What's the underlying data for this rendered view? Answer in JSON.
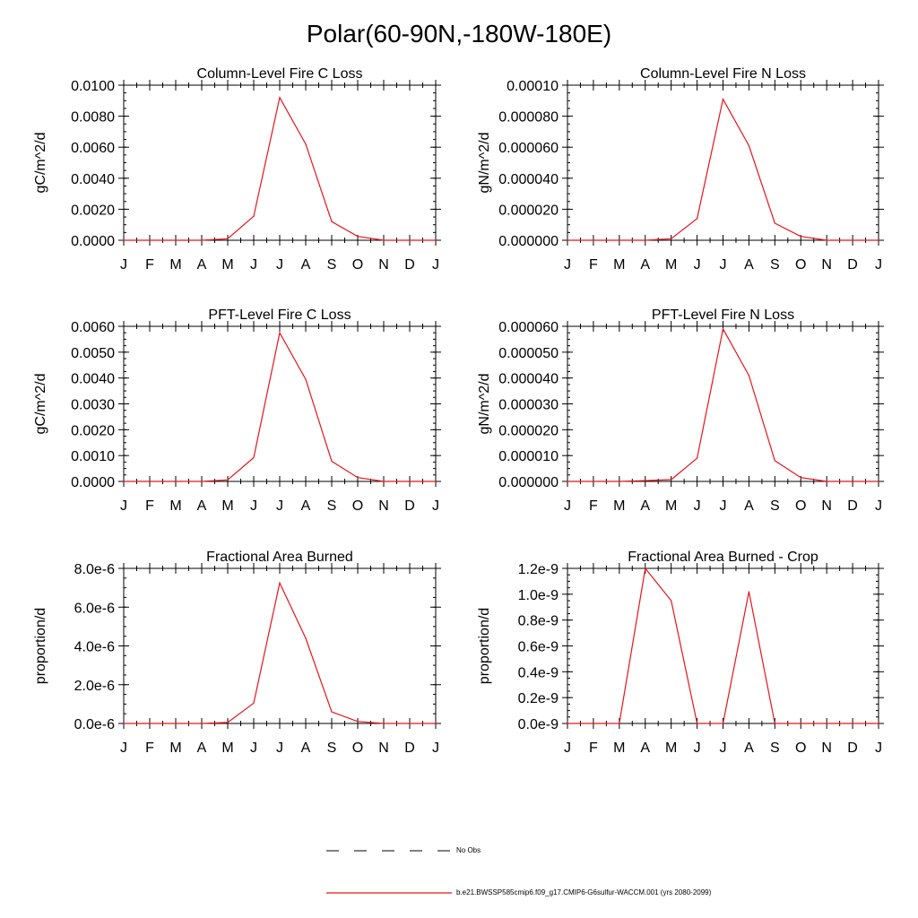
{
  "page_title": "Polar(60-90N,-180W-180E)",
  "months": [
    "J",
    "F",
    "M",
    "A",
    "M",
    "J",
    "J",
    "A",
    "S",
    "O",
    "N",
    "D",
    "J"
  ],
  "colors": {
    "model_line": "#e8141c",
    "obs_line": "#000000",
    "axis": "#000000"
  },
  "legend": {
    "obs_label": "No Obs",
    "model_label": "b.e21.BWSSP585cmip6.f09_g17.CMIP6-G6sulfur-WACCM.001 (yrs 2080-2099)"
  },
  "chart_data": [
    {
      "type": "line",
      "title": "Column-Level Fire C Loss",
      "ylabel": "gC/m^2/d",
      "ylim": [
        0,
        0.01
      ],
      "yticks": [
        "0.0100",
        "0.0080",
        "0.0060",
        "0.0040",
        "0.0020",
        "0.0000"
      ],
      "ytick_values": [
        0.01,
        0.008,
        0.006,
        0.004,
        0.002,
        0
      ],
      "series": [
        {
          "values": [
            0,
            0,
            0,
            0,
            0.0001,
            0.00155,
            0.0092,
            0.0062,
            0.0012,
            0.00025,
            0,
            0,
            0
          ]
        }
      ]
    },
    {
      "type": "line",
      "title": "Column-Level Fire N Loss",
      "ylabel": "gN/m^2/d",
      "ylim": [
        0,
        0.0001
      ],
      "yticks": [
        "0.00010",
        "0.000080",
        "0.000060",
        "0.000040",
        "0.000020",
        "0.000000"
      ],
      "ytick_values": [
        0.0001,
        8e-05,
        6e-05,
        4e-05,
        2e-05,
        0
      ],
      "series": [
        {
          "values": [
            0,
            0,
            0,
            0,
            1e-06,
            1.4e-05,
            9.1e-05,
            6.1e-05,
            1.1e-05,
            2.5e-06,
            0,
            0,
            0
          ]
        }
      ]
    },
    {
      "type": "line",
      "title": "PFT-Level Fire C Loss",
      "ylabel": "gC/m^2/d",
      "ylim": [
        0,
        0.006
      ],
      "yticks": [
        "0.0060",
        "0.0050",
        "0.0040",
        "0.0030",
        "0.0020",
        "0.0010",
        "0.0000"
      ],
      "ytick_values": [
        0.006,
        0.005,
        0.004,
        0.003,
        0.002,
        0.001,
        0
      ],
      "series": [
        {
          "values": [
            0,
            0,
            0,
            0,
            6e-05,
            0.00092,
            0.00575,
            0.00395,
            0.00078,
            0.00015,
            0,
            0,
            0
          ]
        }
      ]
    },
    {
      "type": "line",
      "title": "PFT-Level Fire N Loss",
      "ylabel": "gN/m^2/d",
      "ylim": [
        0,
        6e-05
      ],
      "yticks": [
        "0.000060",
        "0.000050",
        "0.000040",
        "0.000030",
        "0.000020",
        "0.000010",
        "0.000000"
      ],
      "ytick_values": [
        6e-05,
        5e-05,
        4e-05,
        3e-05,
        2e-05,
        1e-05,
        0
      ],
      "series": [
        {
          "values": [
            0,
            0,
            0,
            3e-07,
            7e-07,
            9e-06,
            5.9e-05,
            4.1e-05,
            8e-06,
            1.5e-06,
            0,
            0,
            0
          ]
        }
      ]
    },
    {
      "type": "line",
      "title": "Fractional Area Burned",
      "ylabel": "proportion/d",
      "ylim": [
        0,
        8e-06
      ],
      "yticks": [
        "8.0e-6",
        "6.0e-6",
        "4.0e-6",
        "2.0e-6",
        "0.0e-6"
      ],
      "ytick_values": [
        8e-06,
        6e-06,
        4e-06,
        2e-06,
        0
      ],
      "series": [
        {
          "values": [
            0,
            0,
            0,
            0,
            5e-08,
            1.05e-06,
            7.25e-06,
            4.4e-06,
            6e-07,
            1e-07,
            0,
            0,
            0
          ]
        }
      ]
    },
    {
      "type": "line",
      "title": "Fractional Area Burned - Crop",
      "ylabel": "proportion/d",
      "ylim": [
        0,
        1.2e-09
      ],
      "yticks": [
        "1.2e-9",
        "1.0e-9",
        "0.8e-9",
        "0.6e-9",
        "0.4e-9",
        "0.2e-9",
        "0.0e-9"
      ],
      "ytick_values": [
        1.2e-09,
        1e-09,
        8e-10,
        6e-10,
        4e-10,
        2e-10,
        0
      ],
      "series": [
        {
          "values": [
            0,
            0,
            0,
            1.2e-09,
            9.5e-10,
            0,
            0,
            1.02e-09,
            0,
            0,
            0,
            0,
            0
          ]
        }
      ]
    }
  ]
}
